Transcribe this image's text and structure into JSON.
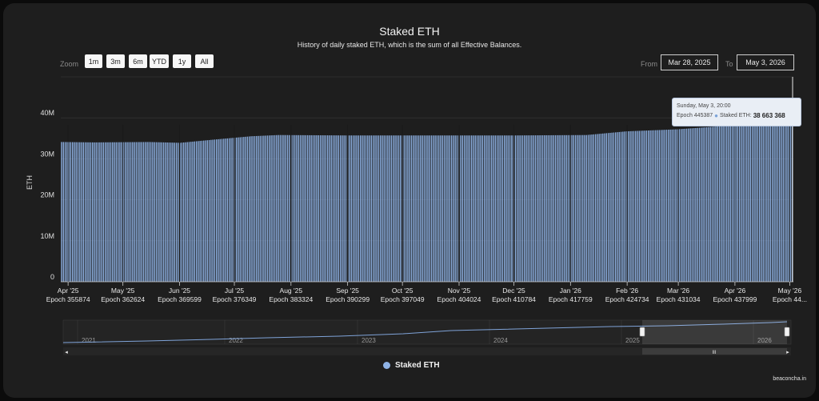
{
  "chart_data": {
    "type": "bar",
    "title": "Staked ETH",
    "subtitle": "History of daily staked ETH, which is the sum of all Effective Balances.",
    "ylabel": "ETH",
    "ylim": [
      0,
      50000000
    ],
    "y_ticks": [
      "0",
      "10M",
      "20M",
      "30M",
      "40M"
    ],
    "x_tick_labels": [
      {
        "month": "Apr '25",
        "epoch": "Epoch 355874"
      },
      {
        "month": "May '25",
        "epoch": "Epoch 362624"
      },
      {
        "month": "Jun '25",
        "epoch": "Epoch 369599"
      },
      {
        "month": "Jul '25",
        "epoch": "Epoch 376349"
      },
      {
        "month": "Aug '25",
        "epoch": "Epoch 383324"
      },
      {
        "month": "Sep '25",
        "epoch": "Epoch 390299"
      },
      {
        "month": "Oct '25",
        "epoch": "Epoch 397049"
      },
      {
        "month": "Nov '25",
        "epoch": "Epoch 404024"
      },
      {
        "month": "Dec '25",
        "epoch": "Epoch 410784"
      },
      {
        "month": "Jan '26",
        "epoch": "Epoch 417759"
      },
      {
        "month": "Feb '26",
        "epoch": "Epoch 424734"
      },
      {
        "month": "Mar '26",
        "epoch": "Epoch 431034"
      },
      {
        "month": "Apr '26",
        "epoch": "Epoch 437999"
      },
      {
        "month": "May '26",
        "epoch": "Epoch 44..."
      }
    ],
    "series": [
      {
        "name": "Staked ETH",
        "color": "#8fb3e6",
        "x_start": "2025-03-28",
        "x_end": "2026-05-03",
        "trend": [
          {
            "date": "2025-03-28",
            "value": 34100000
          },
          {
            "date": "2025-04-15",
            "value": 34000000
          },
          {
            "date": "2025-05-15",
            "value": 34100000
          },
          {
            "date": "2025-06-01",
            "value": 33900000
          },
          {
            "date": "2025-06-20",
            "value": 34700000
          },
          {
            "date": "2025-07-10",
            "value": 35500000
          },
          {
            "date": "2025-07-25",
            "value": 35800000
          },
          {
            "date": "2025-09-01",
            "value": 35700000
          },
          {
            "date": "2025-12-01",
            "value": 35700000
          },
          {
            "date": "2026-01-10",
            "value": 35800000
          },
          {
            "date": "2026-02-01",
            "value": 36700000
          },
          {
            "date": "2026-03-01",
            "value": 37200000
          },
          {
            "date": "2026-04-05",
            "value": 38300000
          },
          {
            "date": "2026-04-25",
            "value": 38900000
          },
          {
            "date": "2026-05-03",
            "value": 38663368
          }
        ]
      }
    ],
    "navigator": {
      "years": [
        "2021",
        "2022",
        "2023",
        "2024",
        "2025",
        "2026"
      ],
      "selected_from": "2025-03-28",
      "selected_to": "2026-05-03"
    },
    "tooltip": {
      "date": "Sunday, May 3, 20:00",
      "epoch": "Epoch 445387",
      "series": "Staked ETH:",
      "value": "38 663 368"
    },
    "grid": true,
    "legend": "bottom-center"
  },
  "toolbar": {
    "zoom_label": "Zoom",
    "zoom_buttons": [
      "1m",
      "3m",
      "6m",
      "YTD",
      "1y",
      "All"
    ],
    "from_label": "From",
    "from_value": "Mar 28, 2025",
    "to_label": "To",
    "to_value": "May 3, 2026"
  },
  "legend": {
    "label": "Staked ETH"
  },
  "credits": "beaconcha.in"
}
